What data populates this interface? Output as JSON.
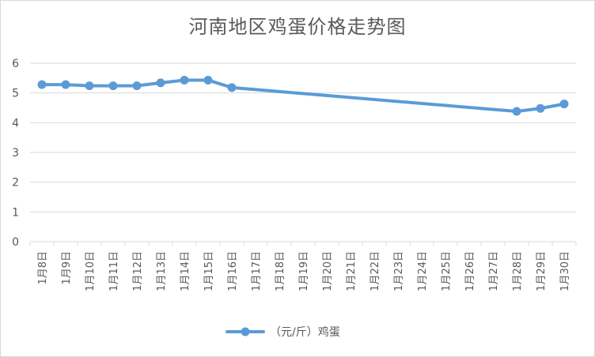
{
  "chart_data": {
    "type": "line",
    "title": "河南地区鸡蛋价格走势图",
    "categories": [
      "1月8日",
      "1月9日",
      "1月10日",
      "1月11日",
      "1月12日",
      "1月13日",
      "1月14日",
      "1月15日",
      "1月16日",
      "1月17日",
      "1月18日",
      "1月19日",
      "1月20日",
      "1月21日",
      "1月22日",
      "1月23日",
      "1月24日",
      "1月25日",
      "1月26日",
      "1月27日",
      "1月28日",
      "1月29日",
      "1月30日"
    ],
    "series": [
      {
        "name": "（元/斤）鸡蛋",
        "color": "#5b9bd5",
        "values": [
          5.28,
          5.28,
          5.24,
          5.24,
          5.24,
          5.34,
          5.43,
          5.43,
          5.18,
          null,
          null,
          null,
          null,
          null,
          null,
          null,
          null,
          null,
          null,
          null,
          4.38,
          4.48,
          4.63
        ]
      }
    ],
    "ylim": [
      0,
      6
    ],
    "yticks": [
      0,
      1,
      2,
      3,
      4,
      5,
      6
    ],
    "grid": true,
    "legend": "bottom"
  }
}
